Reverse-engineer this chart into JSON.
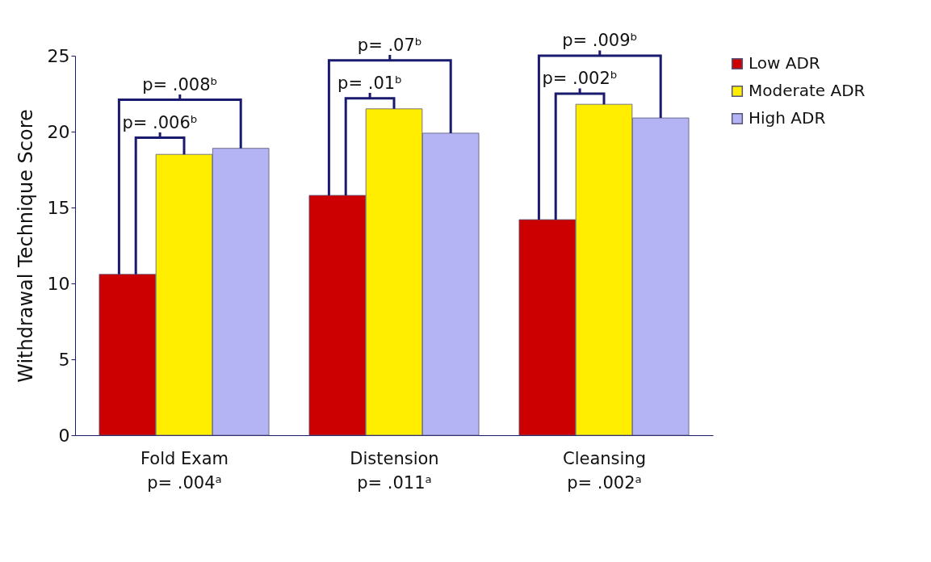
{
  "chart_data": {
    "type": "bar",
    "ylabel": "Withdrawal Technique Score",
    "categories": [
      "Fold Exam\np= .004ᵃ",
      "Distension\np= .011ᵃ",
      "Cleansing\np= .002ᵃ"
    ],
    "series": [
      {
        "name": "Low ADR",
        "color": "#cc0000",
        "values": [
          10.6,
          15.8,
          14.2
        ]
      },
      {
        "name": "Moderate ADR",
        "color": "#ffee00",
        "values": [
          18.5,
          21.5,
          21.8
        ]
      },
      {
        "name": "High ADR",
        "color": "#b4b4f4",
        "values": [
          18.9,
          19.9,
          20.9
        ]
      }
    ],
    "ylim": [
      0,
      25
    ],
    "yticks": [
      0,
      5,
      10,
      15,
      20,
      25
    ],
    "grid": false,
    "legend": "right",
    "annotations": [
      "p= .008ᵇ",
      {
        "text": "p= .006ᵇ",
        "x": "Fold Exam\np= .004ᵃ",
        "y": 18.5
      },
      "p= .07ᵇ",
      {
        "text": "p= .01ᵇ",
        "x": "Distension\np= .011ᵃ",
        "y": 21.5
      },
      "p= .009ᵇ",
      {
        "text": "p= .002ᵇ",
        "x": "Cleansing\np= .002ᵃ",
        "y": 21.8
      }
    ]
  }
}
